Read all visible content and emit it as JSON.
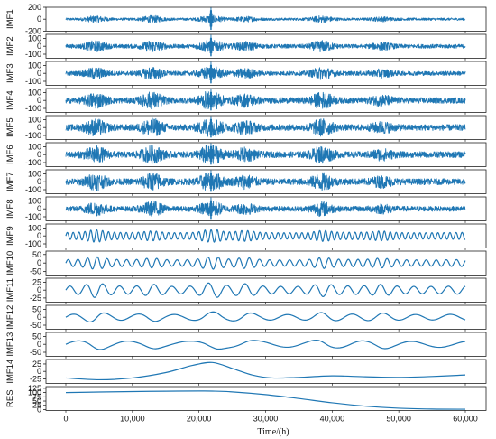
{
  "chart_data": {
    "type": "line",
    "xlabel": "Time/(h)",
    "xlim": [
      0,
      60000
    ],
    "x_ticks": [
      0,
      10000,
      20000,
      30000,
      40000,
      50000,
      60000
    ],
    "x_tick_labels": [
      "0",
      "10,000",
      "20,000",
      "30,000",
      "40,000",
      "50,000",
      "60,000"
    ],
    "line_color": "#1f77b4",
    "grid": false,
    "panels": [
      {
        "name": "IMF1",
        "ylim": [
          -200,
          200
        ],
        "yticks": [
          -200,
          0,
          200
        ],
        "ytick_labels": [
          "-200",
          "0",
          "200"
        ],
        "signal": {
          "kind": "noise",
          "amplitude": 45,
          "spike_at": 21800,
          "spike_amplitude": 200
        }
      },
      {
        "name": "IMF2",
        "ylim": [
          -150,
          150
        ],
        "yticks": [
          -100,
          0,
          100
        ],
        "ytick_labels": [
          "-100",
          "0",
          "100"
        ],
        "signal": {
          "kind": "noise",
          "amplitude": 55,
          "spike_at": 21800,
          "spike_amplitude": 140
        }
      },
      {
        "name": "IMF3",
        "ylim": [
          -150,
          150
        ],
        "yticks": [
          -100,
          0,
          100
        ],
        "ytick_labels": [
          "-100",
          "0",
          "100"
        ],
        "signal": {
          "kind": "noise",
          "amplitude": 60,
          "spike_at": 21800,
          "spike_amplitude": 140
        }
      },
      {
        "name": "IMF4",
        "ylim": [
          -150,
          150
        ],
        "yticks": [
          -100,
          0,
          100
        ],
        "ytick_labels": [
          "-100",
          "0",
          "100"
        ],
        "signal": {
          "kind": "noise",
          "amplitude": 80,
          "spike_at": 21800,
          "spike_amplitude": 140
        }
      },
      {
        "name": "IMF5",
        "ylim": [
          -150,
          150
        ],
        "yticks": [
          -100,
          0,
          100
        ],
        "ytick_labels": [
          "-100",
          "0",
          "100"
        ],
        "signal": {
          "kind": "noise",
          "amplitude": 85,
          "spike_at": 21800,
          "spike_amplitude": 140
        }
      },
      {
        "name": "IMF6",
        "ylim": [
          -150,
          150
        ],
        "yticks": [
          -100,
          0,
          100
        ],
        "ytick_labels": [
          "-100",
          "0",
          "100"
        ],
        "signal": {
          "kind": "noise",
          "amplitude": 85,
          "spike_at": 21800,
          "spike_amplitude": 140
        }
      },
      {
        "name": "IMF7",
        "ylim": [
          -150,
          150
        ],
        "yticks": [
          -100,
          0,
          100
        ],
        "ytick_labels": [
          "-100",
          "0",
          "100"
        ],
        "signal": {
          "kind": "noise",
          "amplitude": 85,
          "spike_at": 21800,
          "spike_amplitude": 140
        }
      },
      {
        "name": "IMF8",
        "ylim": [
          -150,
          150
        ],
        "yticks": [
          -100,
          0,
          100
        ],
        "ytick_labels": [
          "-100",
          "0",
          "100"
        ],
        "signal": {
          "kind": "noise",
          "amplitude": 70,
          "spike_at": 21800,
          "spike_amplitude": 140
        }
      },
      {
        "name": "IMF9",
        "ylim": [
          -150,
          150
        ],
        "yticks": [
          -100,
          0,
          100
        ],
        "ytick_labels": [
          "-100",
          "0",
          "100"
        ],
        "signal": {
          "kind": "osc",
          "amplitude": 60,
          "period": 900
        }
      },
      {
        "name": "IMF10",
        "ylim": [
          -70,
          70
        ],
        "yticks": [
          -50,
          0,
          50
        ],
        "ytick_labels": [
          "-50",
          "0",
          "50"
        ],
        "signal": {
          "kind": "osc",
          "amplitude": 28,
          "period": 1500
        }
      },
      {
        "name": "IMF11",
        "ylim": [
          -38,
          38
        ],
        "yticks": [
          -25,
          0,
          25
        ],
        "ytick_labels": [
          "-25",
          "0",
          "25"
        ],
        "signal": {
          "kind": "osc",
          "amplitude": 18,
          "period": 2600
        }
      },
      {
        "name": "IMF12",
        "ylim": [
          -75,
          75
        ],
        "yticks": [
          -50,
          0,
          50
        ],
        "ytick_labels": [
          "-50",
          "0",
          "50"
        ],
        "signal": {
          "kind": "osc",
          "amplitude": 26,
          "period": 5200
        }
      },
      {
        "name": "IMF13",
        "ylim": [
          -75,
          75
        ],
        "yticks": [
          -50,
          0,
          50
        ],
        "ytick_labels": [
          "-50",
          "0",
          "50"
        ],
        "signal": {
          "kind": "osc",
          "amplitude": 28,
          "period": 8500
        }
      },
      {
        "name": "IMF14",
        "ylim": [
          -40,
          40
        ],
        "yticks": [
          -25,
          0,
          25
        ],
        "ytick_labels": [
          "-25",
          "0",
          "25"
        ],
        "signal": {
          "kind": "points",
          "x": [
            0,
            5000,
            10000,
            15000,
            19000,
            22000,
            25000,
            28000,
            31000,
            35000,
            40000,
            45000,
            50000,
            55000,
            60000
          ],
          "y": [
            -22,
            -28,
            -22,
            -4,
            20,
            30,
            10,
            -12,
            -22,
            -20,
            -15,
            -18,
            -20,
            -17,
            -12
          ]
        }
      },
      {
        "name": "RES",
        "ylim": [
          -5,
          135
        ],
        "yticks": [
          0,
          25,
          50,
          75,
          100,
          125
        ],
        "ytick_labels": [
          "0",
          "25",
          "50",
          "75",
          "100",
          "125"
        ],
        "signal": {
          "kind": "points",
          "x": [
            0,
            5000,
            10000,
            15000,
            20000,
            22000,
            25000,
            30000,
            35000,
            40000,
            45000,
            50000,
            55000,
            60000
          ],
          "y": [
            100,
            103,
            106,
            108,
            109,
            108.5,
            104,
            88,
            65,
            40,
            20,
            8,
            3,
            2
          ]
        }
      }
    ]
  }
}
